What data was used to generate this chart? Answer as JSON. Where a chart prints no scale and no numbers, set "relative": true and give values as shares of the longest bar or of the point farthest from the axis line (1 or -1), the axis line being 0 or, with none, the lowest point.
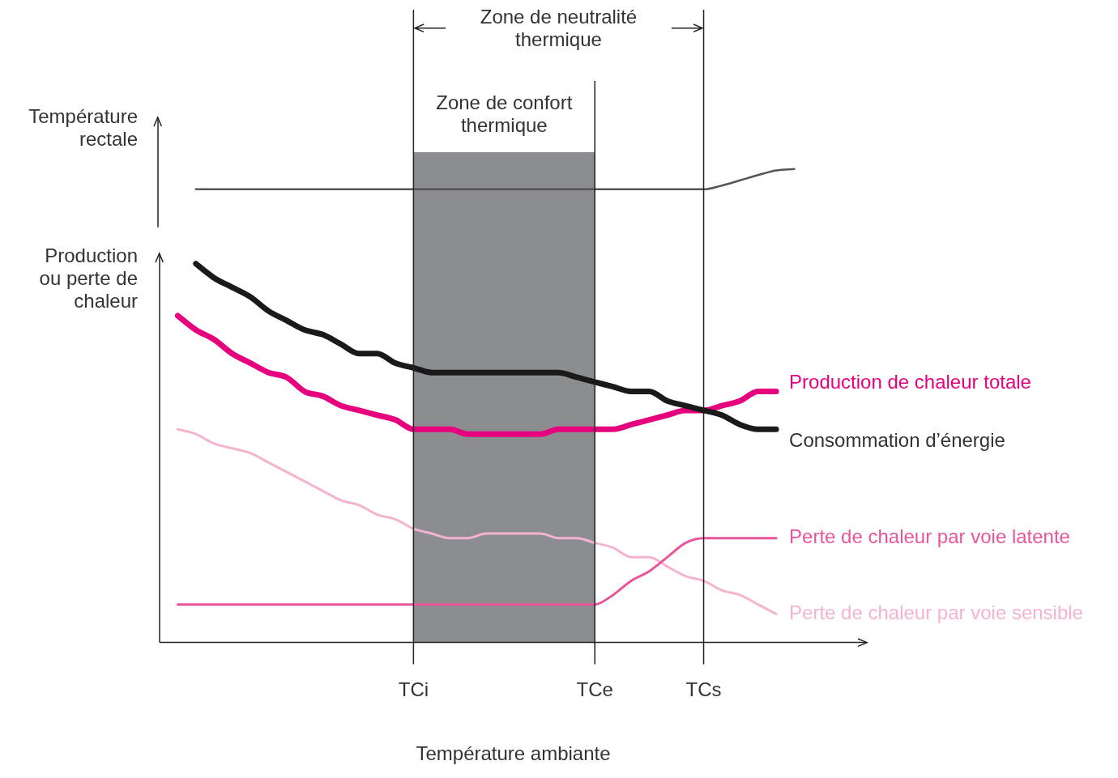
{
  "chart_data": {
    "type": "line",
    "relative": true,
    "xlabel": "Température ambiante",
    "ylabel": "Production ou perte de chaleur",
    "categories": [
      null,
      null,
      null,
      null,
      null,
      null,
      null,
      null,
      null,
      null,
      null,
      null,
      null,
      null,
      "TCi",
      null,
      null,
      null,
      null,
      null,
      null,
      null,
      null,
      null,
      "TCe",
      null,
      null,
      null,
      null,
      null,
      "TCs",
      null,
      null,
      null,
      null,
      null,
      null,
      null,
      null,
      null
    ],
    "grid": "x",
    "legend": false,
    "marker": "none",
    "line_style": "solid",
    "annotations": [
      "Zone de neutralité thermique",
      "Température rectale"
    ],
    "bands": [
      {
        "axis": "x",
        "from": "TCi",
        "to": "TCe",
        "label": "Zone de confort thermique",
        "color": "#8c8d90"
      }
    ],
    "series": [
      {
        "color": "#555555",
        "values": [
          null,
          null,
          0.957,
          0.957,
          0.957,
          0.957,
          0.957,
          0.957,
          0.957,
          0.957,
          0.957,
          0.957,
          0.957,
          0.957,
          0.957,
          0.957,
          0.957,
          0.957,
          0.957,
          0.957,
          0.957,
          0.957,
          0.957,
          0.957,
          0.957,
          0.957,
          0.957,
          0.957,
          0.957,
          0.957,
          0.957,
          0.965,
          0.976,
          0.987,
          0.997,
          1,
          null,
          null,
          null,
          null
        ]
      },
      {
        "name": "Consommation d’énergie",
        "color": "#1a1a1a",
        "values": [
          null,
          null,
          0.8,
          0.77,
          0.75,
          0.73,
          0.7,
          0.68,
          0.66,
          0.65,
          0.63,
          0.61,
          0.61,
          0.59,
          0.58,
          0.57,
          0.57,
          0.57,
          0.57,
          0.57,
          0.57,
          0.57,
          0.57,
          0.56,
          0.55,
          0.54,
          0.53,
          0.53,
          0.51,
          0.5,
          0.49,
          0.48,
          0.46,
          0.45,
          0.45,
          null,
          null,
          null,
          null,
          null
        ]
      },
      {
        "name": "Production de chaleur totale",
        "color": "#e6007e",
        "values": [
          null,
          0.69,
          0.66,
          0.64,
          0.61,
          0.59,
          0.57,
          0.56,
          0.53,
          0.52,
          0.5,
          0.49,
          0.48,
          0.47,
          0.45,
          0.45,
          0.45,
          0.44,
          0.44,
          0.44,
          0.44,
          0.44,
          0.45,
          0.45,
          0.45,
          0.45,
          0.46,
          0.47,
          0.48,
          0.49,
          0.49,
          0.5,
          0.51,
          0.53,
          0.53,
          null,
          null,
          null,
          null,
          null
        ]
      },
      {
        "name": "Perte de chaleur par voie latente",
        "color": "#e8559a",
        "values": [
          null,
          0.08,
          0.08,
          0.08,
          0.08,
          0.08,
          0.08,
          0.08,
          0.08,
          0.08,
          0.08,
          0.08,
          0.08,
          0.08,
          0.08,
          0.08,
          0.08,
          0.08,
          0.08,
          0.08,
          0.08,
          0.08,
          0.08,
          0.08,
          0.08,
          0.1,
          0.13,
          0.15,
          0.18,
          0.21,
          0.22,
          0.22,
          0.22,
          0.22,
          0.22,
          null,
          null,
          null,
          null,
          null
        ]
      },
      {
        "name": "Perte de chaleur par voie sensible",
        "color": "#f4b3cf",
        "values": [
          null,
          0.45,
          0.44,
          0.42,
          0.41,
          0.4,
          0.38,
          0.36,
          0.34,
          0.32,
          0.3,
          0.29,
          0.27,
          0.26,
          0.24,
          0.23,
          0.22,
          0.22,
          0.23,
          0.23,
          0.23,
          0.23,
          0.22,
          0.22,
          0.21,
          0.2,
          0.18,
          0.18,
          0.16,
          0.14,
          0.13,
          0.11,
          0.1,
          0.08,
          0.06,
          null,
          null,
          null,
          null,
          null
        ]
      }
    ]
  }
}
